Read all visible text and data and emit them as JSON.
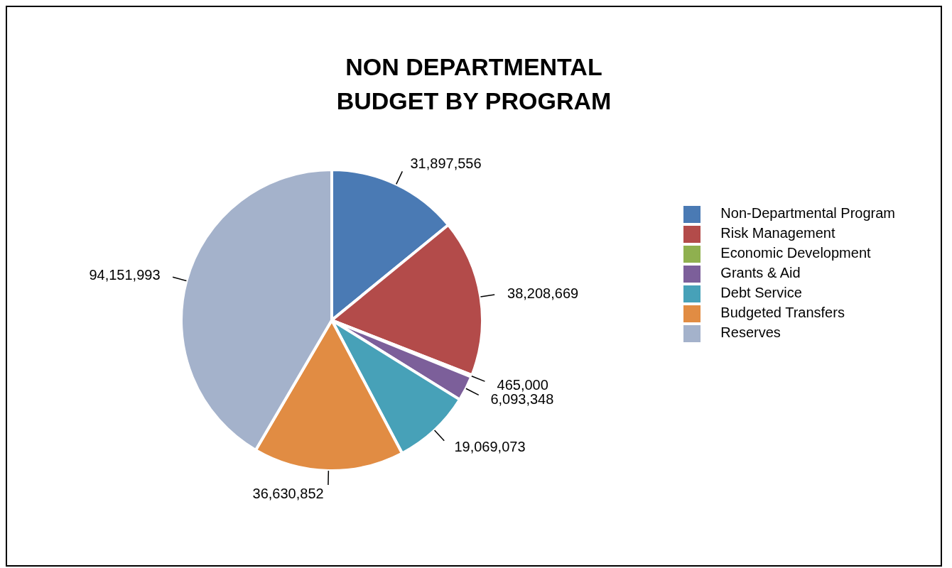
{
  "chart_data": {
    "type": "pie",
    "title": "NON DEPARTMENTAL\nBUDGET BY PROGRAM",
    "categories": [
      "Non-Departmental Program",
      "Risk Management",
      "Economic Development",
      "Grants & Aid",
      "Debt Service",
      "Budgeted Transfers",
      "Reserves"
    ],
    "values": [
      31897556,
      38208669,
      465000,
      6093348,
      19069073,
      36630852,
      94151993
    ],
    "colors": [
      "#4a7ab4",
      "#b34b4a",
      "#8fb04f",
      "#7c5f9a",
      "#47a1b8",
      "#e18c43",
      "#a4b2cb"
    ],
    "value_labels": [
      "31,897,556",
      "38,208,669",
      "465,000",
      "6,093,348",
      "19,069,073",
      "36,630,852",
      "94,151,993"
    ],
    "legend": "right"
  }
}
